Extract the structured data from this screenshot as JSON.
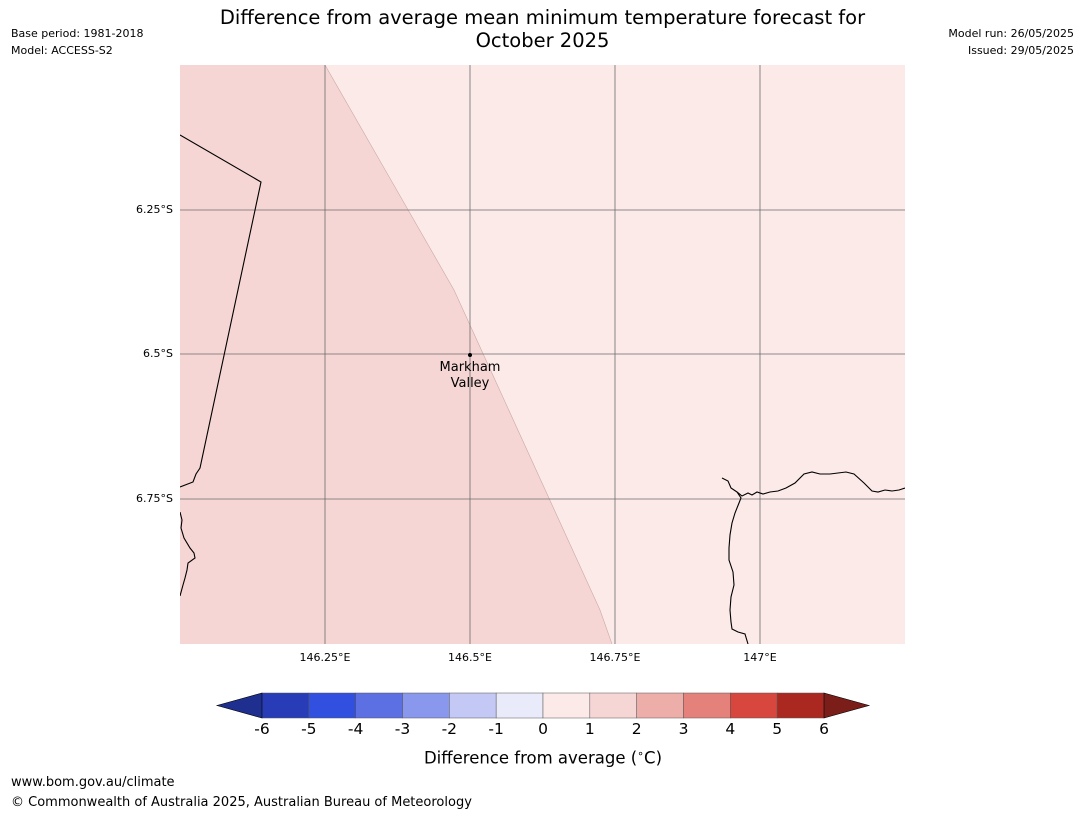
{
  "header": {
    "title_line1": "Difference from average mean minimum temperature forecast for",
    "title_line2": "October 2025",
    "base_period": "Base period: 1981-2018",
    "model": "Model: ACCESS-S2",
    "model_run": "Model run: 26/05/2025",
    "issued": "Issued: 29/05/2025"
  },
  "map": {
    "lat_labels": [
      "6.25°S",
      "6.5°S",
      "6.75°S"
    ],
    "lon_labels": [
      "146.25°E",
      "146.5°E",
      "146.75°E",
      "147°E"
    ],
    "city": {
      "name_line1": "Markham",
      "name_line2": "Valley"
    },
    "region_colors": {
      "western_band": "#f5d6d4",
      "eastern_band": "#fbeae8"
    },
    "gridline_color": "#6b6b6b",
    "coastline_color": "#000000"
  },
  "colorbar": {
    "ticks": [
      "-6",
      "-5",
      "-4",
      "-3",
      "-2",
      "-1",
      "0",
      "1",
      "2",
      "3",
      "4",
      "5",
      "6"
    ],
    "colors": [
      "#1f2f8f",
      "#283cb8",
      "#3150df",
      "#5c70e4",
      "#8997ec",
      "#c3c8f4",
      "#e9ebfb",
      "#fbeae8",
      "#f5d6d4",
      "#edaea9",
      "#e4817b",
      "#d8473d",
      "#ab2820",
      "#7b1e1a"
    ],
    "label": "Difference from average ($^\\circ$C)",
    "label_text": "Difference from average (",
    "label_unit": "C)",
    "degree": "∘"
  },
  "footer": {
    "url": "www.bom.gov.au/climate",
    "copyright": "© Commonwealth of Australia 2025, Australian Bureau of Meteorology"
  }
}
